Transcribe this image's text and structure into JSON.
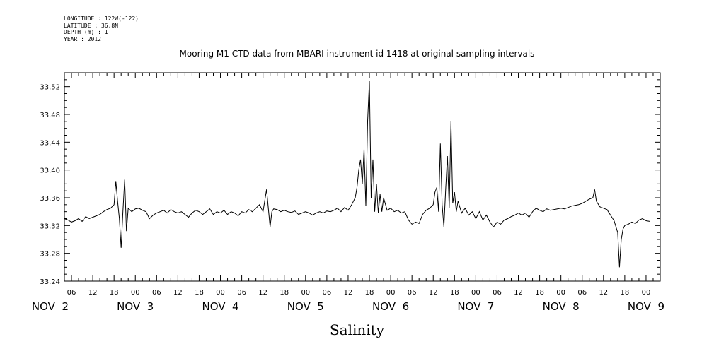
{
  "meta": {
    "longitude": "LONGITUDE : 122W(-122)",
    "latitude": "LATITUDE : 36.8N",
    "depth": "DEPTH (m) : 1",
    "year": "YEAR : 2012"
  },
  "chart_data": {
    "type": "line",
    "title": "Mooring M1 CTD data from MBARI instrument id 1418 at original sampling intervals",
    "xlabel": "Salinity",
    "ylabel": "",
    "ylim": [
      33.24,
      33.54
    ],
    "xlim_hours": [
      4,
      172
    ],
    "y_ticks": [
      "33.24",
      "33.28",
      "33.32",
      "33.36",
      "33.40",
      "33.44",
      "33.48",
      "33.52"
    ],
    "hour_ticks": [
      "06",
      "12",
      "18",
      "00",
      "06",
      "12",
      "18",
      "00",
      "06",
      "12",
      "18",
      "00",
      "06",
      "12",
      "18",
      "00",
      "06",
      "12",
      "18",
      "00",
      "06",
      "12",
      "18",
      "00",
      "06",
      "12",
      "18",
      "00"
    ],
    "date_labels": [
      "NOV  2",
      "NOV  3",
      "NOV  4",
      "NOV  5",
      "NOV  6",
      "NOV  7",
      "NOV  8",
      "NOV  9"
    ],
    "grid": false,
    "series": [
      {
        "name": "",
        "x_unit": "hours since 2012-11-02 00:00",
        "points": [
          [
            4,
            33.33
          ],
          [
            5,
            33.328
          ],
          [
            6,
            33.325
          ],
          [
            7,
            33.327
          ],
          [
            8,
            33.33
          ],
          [
            9,
            33.326
          ],
          [
            10,
            33.333
          ],
          [
            11,
            33.33
          ],
          [
            12,
            33.332
          ],
          [
            13,
            33.334
          ],
          [
            14,
            33.336
          ],
          [
            15,
            33.34
          ],
          [
            16,
            33.343
          ],
          [
            17,
            33.345
          ],
          [
            18,
            33.35
          ],
          [
            18.5,
            33.384
          ],
          [
            19,
            33.355
          ],
          [
            19.5,
            33.33
          ],
          [
            20,
            33.288
          ],
          [
            20.5,
            33.34
          ],
          [
            21,
            33.386
          ],
          [
            21.5,
            33.312
          ],
          [
            22,
            33.345
          ],
          [
            23,
            33.34
          ],
          [
            24,
            33.344
          ],
          [
            25,
            33.345
          ],
          [
            26,
            33.342
          ],
          [
            27,
            33.34
          ],
          [
            28,
            33.33
          ],
          [
            29,
            33.335
          ],
          [
            30,
            33.338
          ],
          [
            31,
            33.34
          ],
          [
            32,
            33.342
          ],
          [
            33,
            33.338
          ],
          [
            34,
            33.343
          ],
          [
            35,
            33.34
          ],
          [
            36,
            33.338
          ],
          [
            37,
            33.34
          ],
          [
            38,
            33.336
          ],
          [
            39,
            33.332
          ],
          [
            40,
            33.338
          ],
          [
            41,
            33.342
          ],
          [
            42,
            33.34
          ],
          [
            43,
            33.336
          ],
          [
            44,
            33.34
          ],
          [
            45,
            33.344
          ],
          [
            46,
            33.336
          ],
          [
            47,
            33.34
          ],
          [
            48,
            33.338
          ],
          [
            49,
            33.342
          ],
          [
            50,
            33.336
          ],
          [
            51,
            33.34
          ],
          [
            52,
            33.338
          ],
          [
            53,
            33.334
          ],
          [
            54,
            33.34
          ],
          [
            55,
            33.338
          ],
          [
            56,
            33.343
          ],
          [
            57,
            33.34
          ],
          [
            58,
            33.345
          ],
          [
            59,
            33.35
          ],
          [
            60,
            33.34
          ],
          [
            61,
            33.372
          ],
          [
            61.5,
            33.345
          ],
          [
            62,
            33.318
          ],
          [
            62.5,
            33.34
          ],
          [
            63,
            33.344
          ],
          [
            64,
            33.343
          ],
          [
            65,
            33.34
          ],
          [
            66,
            33.342
          ],
          [
            67,
            33.34
          ],
          [
            68,
            33.339
          ],
          [
            69,
            33.341
          ],
          [
            70,
            33.336
          ],
          [
            71,
            33.338
          ],
          [
            72,
            33.34
          ],
          [
            73,
            33.338
          ],
          [
            74,
            33.335
          ],
          [
            75,
            33.338
          ],
          [
            76,
            33.34
          ],
          [
            77,
            33.338
          ],
          [
            78,
            33.341
          ],
          [
            79,
            33.34
          ],
          [
            80,
            33.342
          ],
          [
            81,
            33.345
          ],
          [
            82,
            33.34
          ],
          [
            83,
            33.346
          ],
          [
            84,
            33.342
          ],
          [
            85,
            33.35
          ],
          [
            86,
            33.36
          ],
          [
            86.5,
            33.375
          ],
          [
            87,
            33.4
          ],
          [
            87.5,
            33.415
          ],
          [
            88,
            33.38
          ],
          [
            88.5,
            33.43
          ],
          [
            89,
            33.348
          ],
          [
            89.5,
            33.47
          ],
          [
            90,
            33.528
          ],
          [
            90.5,
            33.36
          ],
          [
            91,
            33.415
          ],
          [
            91.5,
            33.34
          ],
          [
            92,
            33.38
          ],
          [
            92.5,
            33.338
          ],
          [
            93,
            33.365
          ],
          [
            93.5,
            33.34
          ],
          [
            94,
            33.36
          ],
          [
            95,
            33.342
          ],
          [
            96,
            33.345
          ],
          [
            97,
            33.34
          ],
          [
            98,
            33.342
          ],
          [
            99,
            33.338
          ],
          [
            100,
            33.34
          ],
          [
            101,
            33.328
          ],
          [
            102,
            33.322
          ],
          [
            103,
            33.325
          ],
          [
            104,
            33.323
          ],
          [
            105,
            33.336
          ],
          [
            106,
            33.342
          ],
          [
            107,
            33.345
          ],
          [
            108,
            33.35
          ],
          [
            108.5,
            33.368
          ],
          [
            109,
            33.375
          ],
          [
            109.5,
            33.34
          ],
          [
            110,
            33.438
          ],
          [
            110.5,
            33.35
          ],
          [
            111,
            33.318
          ],
          [
            111.5,
            33.372
          ],
          [
            112,
            33.42
          ],
          [
            112.5,
            33.345
          ],
          [
            113,
            33.47
          ],
          [
            113.5,
            33.352
          ],
          [
            114,
            33.368
          ],
          [
            114.5,
            33.34
          ],
          [
            115,
            33.355
          ],
          [
            116,
            33.338
          ],
          [
            117,
            33.345
          ],
          [
            118,
            33.335
          ],
          [
            119,
            33.34
          ],
          [
            120,
            33.33
          ],
          [
            121,
            33.34
          ],
          [
            122,
            33.328
          ],
          [
            123,
            33.335
          ],
          [
            124,
            33.325
          ],
          [
            125,
            33.318
          ],
          [
            126,
            33.325
          ],
          [
            127,
            33.322
          ],
          [
            128,
            33.328
          ],
          [
            129,
            33.33
          ],
          [
            130,
            33.333
          ],
          [
            131,
            33.335
          ],
          [
            132,
            33.338
          ],
          [
            133,
            33.335
          ],
          [
            134,
            33.338
          ],
          [
            135,
            33.332
          ],
          [
            136,
            33.34
          ],
          [
            137,
            33.345
          ],
          [
            138,
            33.342
          ],
          [
            139,
            33.34
          ],
          [
            140,
            33.344
          ],
          [
            141,
            33.342
          ],
          [
            142,
            33.343
          ],
          [
            143,
            33.344
          ],
          [
            144,
            33.345
          ],
          [
            145,
            33.344
          ],
          [
            146,
            33.346
          ],
          [
            147,
            33.348
          ],
          [
            148,
            33.349
          ],
          [
            149,
            33.35
          ],
          [
            150,
            33.352
          ],
          [
            151,
            33.355
          ],
          [
            152,
            33.358
          ],
          [
            153,
            33.36
          ],
          [
            153.5,
            33.372
          ],
          [
            154,
            33.355
          ],
          [
            155,
            33.347
          ],
          [
            156,
            33.345
          ],
          [
            157,
            33.343
          ],
          [
            158,
            33.335
          ],
          [
            159,
            33.327
          ],
          [
            160,
            33.31
          ],
          [
            160.5,
            33.26
          ],
          [
            161,
            33.3
          ],
          [
            161.5,
            33.315
          ],
          [
            162,
            33.32
          ],
          [
            163,
            33.322
          ],
          [
            164,
            33.325
          ],
          [
            165,
            33.323
          ],
          [
            166,
            33.328
          ],
          [
            167,
            33.33
          ],
          [
            168,
            33.327
          ],
          [
            169,
            33.326
          ]
        ]
      }
    ]
  }
}
